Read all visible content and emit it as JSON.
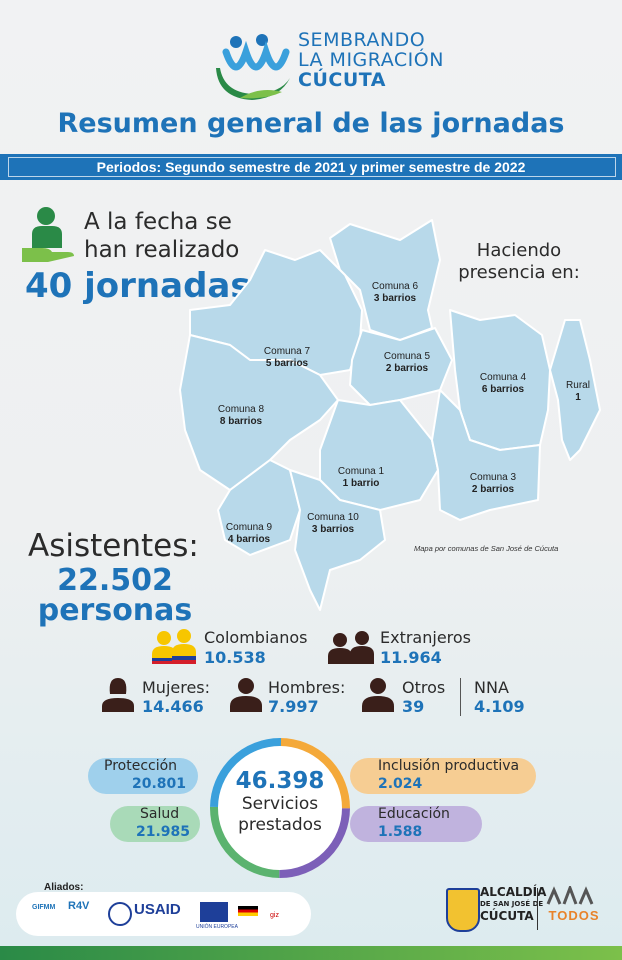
{
  "header": {
    "logo_line1": "SEMBRANDO",
    "logo_line2": "LA MIGRACIÓN",
    "logo_line3": "CÚCUTA",
    "title": "Resumen general de las jornadas",
    "period": "Periodos: Segundo semestre de 2021 y primer semestre de 2022"
  },
  "jornadas": {
    "line1": "A la fecha se",
    "line2": "han realizado",
    "count": "40 jornadas"
  },
  "map": {
    "heading_line1": "Haciendo",
    "heading_line2": "presencia en:",
    "note": "Mapa por comunas de San José de Cúcuta",
    "comunas": [
      {
        "name": "Comuna 6",
        "barrios": "3 barrios"
      },
      {
        "name": "Comuna 7",
        "barrios": "5 barrios"
      },
      {
        "name": "Comuna 5",
        "barrios": "2 barrios"
      },
      {
        "name": "Comuna 4",
        "barrios": "6 barrios"
      },
      {
        "name": "Rural",
        "barrios": "1"
      },
      {
        "name": "Comuna 8",
        "barrios": "8 barrios"
      },
      {
        "name": "Comuna 1",
        "barrios": "1 barrio"
      },
      {
        "name": "Comuna 3",
        "barrios": "2 barrios"
      },
      {
        "name": "Comuna 9",
        "barrios": "4 barrios"
      },
      {
        "name": "Comuna 10",
        "barrios": "3 barrios"
      }
    ],
    "colors": {
      "fill": "#b8d9ea",
      "stroke": "#ffffff"
    }
  },
  "asistentes": {
    "label": "Asistentes:",
    "count_line1": "22.502",
    "count_line2": "personas"
  },
  "stats": {
    "colombianos": {
      "label": "Colombianos",
      "value": "10.538"
    },
    "extranjeros": {
      "label": "Extranjeros",
      "value": "11.964"
    },
    "mujeres": {
      "label": "Mujeres:",
      "value": "14.466"
    },
    "hombres": {
      "label": "Hombres:",
      "value": "7.997"
    },
    "otros": {
      "label": "Otros",
      "value": "39"
    },
    "nna": {
      "label": "NNA",
      "value": "4.109"
    }
  },
  "servicios": {
    "total": "46.398",
    "label_line1": "Servicios",
    "label_line2": "prestados",
    "proteccion": {
      "label": "Protección",
      "value": "20.801",
      "color": "#9fd0ec"
    },
    "salud": {
      "label": "Salud",
      "value": "21.985",
      "color": "#a9dab8"
    },
    "inclusion": {
      "label": "Inclusión productiva",
      "value": "2.024",
      "color": "#f6cd93"
    },
    "educacion": {
      "label": "Educación",
      "value": "1.588",
      "color": "#c0b3de"
    }
  },
  "footer": {
    "aliados_label": "Aliados:",
    "partners": [
      "GIFMM",
      "R4V",
      "USAID",
      "UNIÓN EUROPEA",
      "giz"
    ],
    "alcaldia_line1": "ALCALDÍA",
    "alcaldia_line2": "DE SAN JOSÉ DE",
    "alcaldia_line3": "CÚCUTA",
    "todos": "TODOS"
  },
  "colors": {
    "brand_blue": "#1e73b8",
    "brand_green": "#2a8a47",
    "icon_dark": "#3a1f1a"
  }
}
